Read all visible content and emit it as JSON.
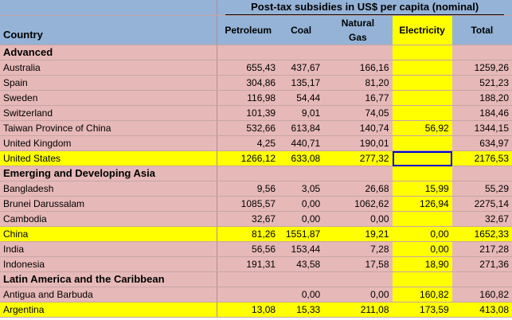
{
  "sheet": {
    "title": "Post-tax subsidies in US$ per capita (nominal)",
    "columns": {
      "country": "Country",
      "petroleum": "Petroleum",
      "coal": "Coal",
      "natgas_line1": "Natural",
      "natgas_line2": "Gas",
      "electricity": "Electricity",
      "total": "Total"
    },
    "rows": [
      {
        "country": "Advanced",
        "group": true
      },
      {
        "country": "Australia",
        "petroleum": "655,43",
        "coal": "437,67",
        "natgas": "166,16",
        "electricity": "",
        "total": "1259,26"
      },
      {
        "country": "Spain",
        "petroleum": "304,86",
        "coal": "135,17",
        "natgas": "81,20",
        "electricity": "",
        "total": "521,23"
      },
      {
        "country": "Sweden",
        "petroleum": "116,98",
        "coal": "54,44",
        "natgas": "16,77",
        "electricity": "",
        "total": "188,20"
      },
      {
        "country": "Switzerland",
        "petroleum": "101,39",
        "coal": "9,01",
        "natgas": "74,05",
        "electricity": "",
        "total": "184,46"
      },
      {
        "country": "Taiwan Province of China",
        "petroleum": "532,66",
        "coal": "613,84",
        "natgas": "140,74",
        "electricity": "56,92",
        "total": "1344,15"
      },
      {
        "country": "United Kingdom",
        "petroleum": "4,25",
        "coal": "440,71",
        "natgas": "190,01",
        "electricity": "",
        "total": "634,97"
      },
      {
        "country": "United States",
        "petroleum": "1266,12",
        "coal": "633,08",
        "natgas": "277,32",
        "electricity": "",
        "total": "2176,53",
        "highlight": true,
        "selected_col": "electricity"
      },
      {
        "country": "Emerging and Developing Asia",
        "group": true
      },
      {
        "country": "Bangladesh",
        "petroleum": "9,56",
        "coal": "3,05",
        "natgas": "26,68",
        "electricity": "15,99",
        "total": "55,29"
      },
      {
        "country": "Brunei Darussalam",
        "petroleum": "1085,57",
        "coal": "0,00",
        "natgas": "1062,62",
        "electricity": "126,94",
        "total": "2275,14"
      },
      {
        "country": "Cambodia",
        "petroleum": "32,67",
        "coal": "0,00",
        "natgas": "0,00",
        "electricity": "",
        "total": "32,67"
      },
      {
        "country": "China",
        "petroleum": "81,26",
        "coal": "1551,87",
        "natgas": "19,21",
        "electricity": "0,00",
        "total": "1652,33",
        "highlight": true
      },
      {
        "country": "India",
        "petroleum": "56,56",
        "coal": "153,44",
        "natgas": "7,28",
        "electricity": "0,00",
        "total": "217,28"
      },
      {
        "country": "Indonesia",
        "petroleum": "191,31",
        "coal": "43,58",
        "natgas": "17,58",
        "electricity": "18,90",
        "total": "271,36"
      },
      {
        "country": "Latin America and the Caribbean",
        "group": true
      },
      {
        "country": "Antigua and Barbuda",
        "petroleum": "",
        "coal": "0,00",
        "natgas": "0,00",
        "electricity": "160,82",
        "total": "160,82"
      },
      {
        "country": "Argentina",
        "petroleum": "13,08",
        "coal": "15,33",
        "natgas": "211,08",
        "electricity": "173,59",
        "total": "413,08",
        "highlight": true
      }
    ]
  },
  "colors": {
    "header_bg": "#95b3d7",
    "row_bg": "#e6b9b8",
    "highlight": "#ffff00",
    "selection": "#0000cc"
  }
}
